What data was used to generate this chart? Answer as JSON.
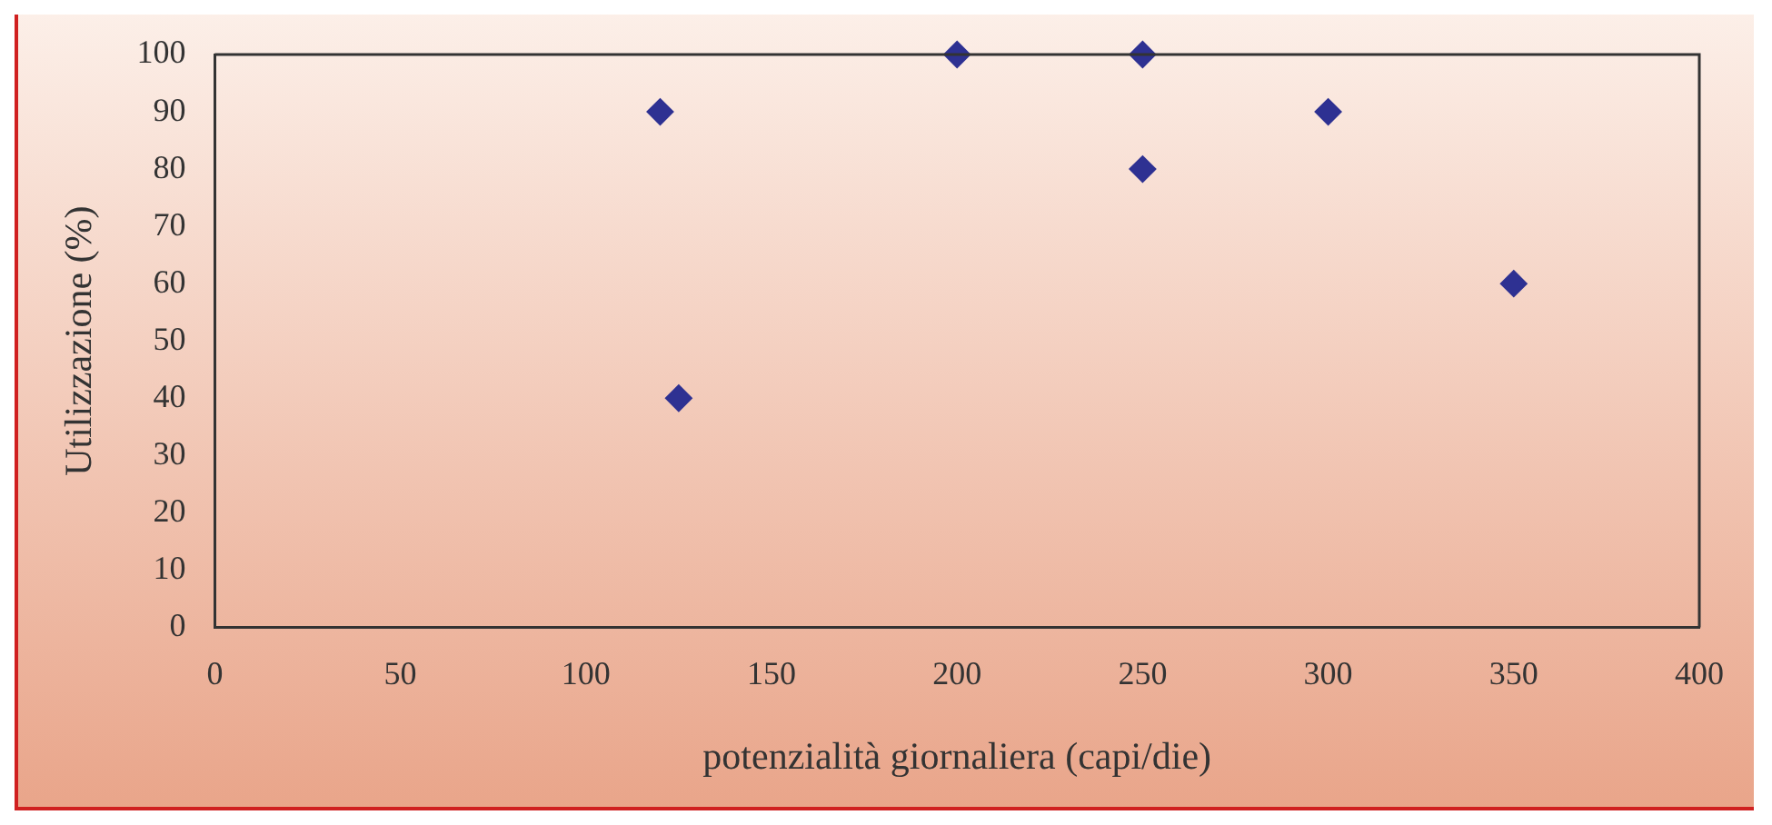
{
  "chart_data": {
    "type": "scatter",
    "xlabel": "potenzialità giornaliera (capi/die)",
    "ylabel": "Utilizzazione (%)",
    "x": [
      120,
      125,
      200,
      250,
      250,
      300,
      350
    ],
    "series": [
      {
        "color": "#2e3192",
        "values": [
          90,
          40,
          100,
          100,
          80,
          90,
          60
        ]
      }
    ],
    "xlim": [
      0,
      400
    ],
    "xticks": [
      0,
      50,
      100,
      150,
      200,
      250,
      300,
      350,
      400
    ],
    "ylim": [
      0,
      100
    ],
    "yticks": [
      0,
      10,
      20,
      30,
      40,
      50,
      60,
      70,
      80,
      90,
      100
    ],
    "grid": false,
    "legend": false,
    "marker": "diamond"
  }
}
